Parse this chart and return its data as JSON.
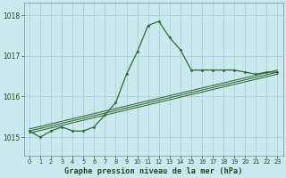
{
  "xlabel": "Graphe pression niveau de la mer (hPa)",
  "background_color": "#cce8ef",
  "grid_color": "#aad0d8",
  "line_color": "#2d6a2d",
  "xlim": [
    -0.5,
    23.5
  ],
  "ylim": [
    1014.55,
    1018.3
  ],
  "yticks": [
    1015,
    1016,
    1017,
    1018
  ],
  "xticks": [
    0,
    1,
    2,
    3,
    4,
    5,
    6,
    7,
    8,
    9,
    10,
    11,
    12,
    13,
    14,
    15,
    16,
    17,
    18,
    19,
    20,
    21,
    22,
    23
  ],
  "hours": [
    0,
    1,
    2,
    3,
    4,
    5,
    6,
    7,
    8,
    9,
    10,
    11,
    12,
    13,
    14,
    15,
    16,
    17,
    18,
    19,
    20,
    21,
    22,
    23
  ],
  "main_line": [
    1015.15,
    1015.0,
    1015.15,
    1015.25,
    1015.15,
    1015.15,
    1015.25,
    1015.55,
    1015.85,
    1016.55,
    1017.1,
    1017.75,
    1017.85,
    1017.45,
    1017.15,
    1016.65,
    1016.65,
    1016.65,
    1016.65,
    1016.65,
    1016.6,
    1016.55,
    1016.6,
    1016.6
  ],
  "diag_lines": [
    [
      1015.1,
      1016.55
    ],
    [
      1015.15,
      1016.6
    ],
    [
      1015.2,
      1016.65
    ]
  ]
}
